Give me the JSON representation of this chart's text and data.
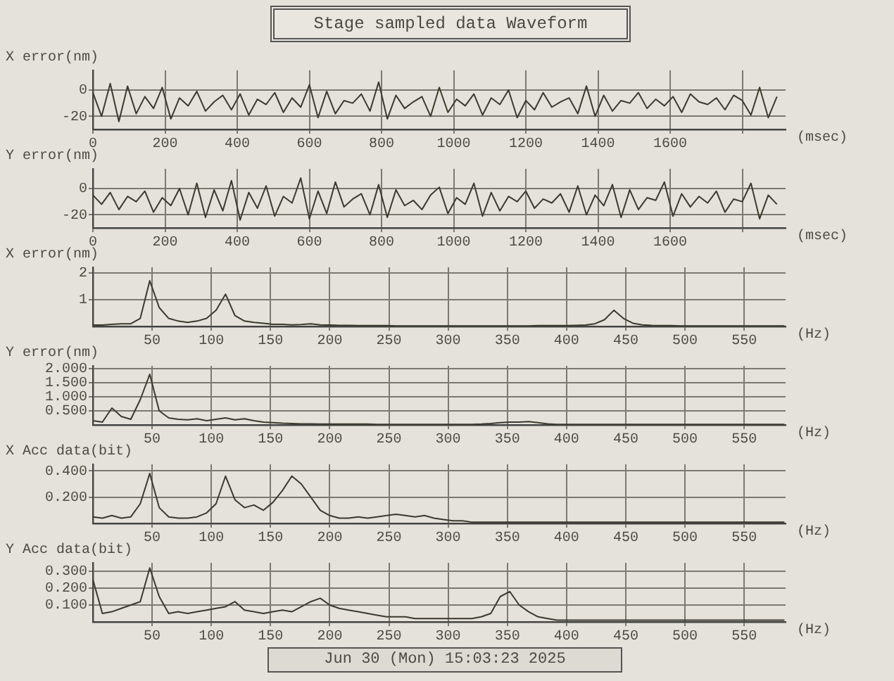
{
  "chart_data": [
    {
      "type": "line",
      "title": "Stage sampled data Waveform",
      "ylabel": "X error(nm)",
      "xlabel": "(msec)",
      "grid": true,
      "marker": "none",
      "line_style": "solid",
      "x": [
        0,
        24,
        48,
        72,
        96,
        120,
        144,
        168,
        192,
        216,
        240,
        264,
        288,
        312,
        336,
        360,
        384,
        408,
        432,
        456,
        480,
        504,
        528,
        552,
        576,
        600,
        624,
        648,
        672,
        696,
        720,
        744,
        768,
        792,
        816,
        840,
        864,
        888,
        912,
        936,
        960,
        984,
        1008,
        1032,
        1056,
        1080,
        1104,
        1128,
        1152,
        1176,
        1200,
        1224,
        1248,
        1272,
        1296,
        1320,
        1344,
        1368,
        1392,
        1416,
        1440,
        1464,
        1488,
        1512,
        1536,
        1560,
        1584,
        1608,
        1632,
        1656,
        1680,
        1704,
        1728,
        1752,
        1776,
        1800,
        1824,
        1848,
        1872,
        1896
      ],
      "xlim": [
        0,
        1920
      ],
      "xticks": [
        0,
        200,
        400,
        600,
        800,
        1000,
        1200,
        1400,
        1600,
        {
          "value": 1800,
          "label": null
        }
      ],
      "ylim": [
        -30,
        15
      ],
      "yticks": [
        0,
        -20
      ],
      "series": [
        {
          "color": "#3a3a2e",
          "values": [
            -2,
            -20,
            5,
            -24,
            3,
            -18,
            -5,
            -14,
            2,
            -22,
            -6,
            -12,
            -1,
            -16,
            -9,
            -4,
            -15,
            -3,
            -19,
            -7,
            -11,
            -2,
            -17,
            -6,
            -13,
            4,
            -21,
            -1,
            -18,
            -8,
            -10,
            -3,
            -16,
            6,
            -22,
            -4,
            -14,
            -9,
            -5,
            -20,
            2,
            -17,
            -7,
            -12,
            -3,
            -19,
            -6,
            -11,
            0,
            -21,
            -8,
            -15,
            -2,
            -13,
            -9,
            -6,
            -18,
            3,
            -20,
            -4,
            -16,
            -8,
            -10,
            -2,
            -14,
            -7,
            -12,
            -5,
            -17,
            -3,
            -9,
            -11,
            -6,
            -15,
            -4,
            -8,
            -19,
            2,
            -21,
            -5
          ]
        }
      ]
    },
    {
      "type": "line",
      "ylabel": "Y error(nm)",
      "xlabel": "(msec)",
      "grid": true,
      "marker": "none",
      "line_style": "solid",
      "x": [
        0,
        24,
        48,
        72,
        96,
        120,
        144,
        168,
        192,
        216,
        240,
        264,
        288,
        312,
        336,
        360,
        384,
        408,
        432,
        456,
        480,
        504,
        528,
        552,
        576,
        600,
        624,
        648,
        672,
        696,
        720,
        744,
        768,
        792,
        816,
        840,
        864,
        888,
        912,
        936,
        960,
        984,
        1008,
        1032,
        1056,
        1080,
        1104,
        1128,
        1152,
        1176,
        1200,
        1224,
        1248,
        1272,
        1296,
        1320,
        1344,
        1368,
        1392,
        1416,
        1440,
        1464,
        1488,
        1512,
        1536,
        1560,
        1584,
        1608,
        1632,
        1656,
        1680,
        1704,
        1728,
        1752,
        1776,
        1800,
        1824,
        1848,
        1872,
        1896
      ],
      "xlim": [
        0,
        1920
      ],
      "xticks": [
        0,
        200,
        400,
        600,
        800,
        1000,
        1200,
        1400,
        1600,
        {
          "value": 1800,
          "label": null
        }
      ],
      "ylim": [
        -30,
        15
      ],
      "yticks": [
        0,
        -20
      ],
      "series": [
        {
          "color": "#3a3a2e",
          "values": [
            -5,
            -12,
            -3,
            -16,
            -6,
            -10,
            -2,
            -18,
            -7,
            -13,
            0,
            -20,
            4,
            -22,
            -1,
            -17,
            6,
            -24,
            -3,
            -15,
            2,
            -21,
            -6,
            -11,
            8,
            -23,
            -2,
            -19,
            5,
            -14,
            -8,
            -4,
            -20,
            3,
            -22,
            -1,
            -13,
            -9,
            -16,
            -5,
            1,
            -19,
            -7,
            -12,
            4,
            -21,
            -3,
            -17,
            -6,
            -10,
            -2,
            -15,
            -8,
            -11,
            -4,
            -18,
            2,
            -20,
            -5,
            -13,
            3,
            -22,
            -1,
            -16,
            -7,
            -9,
            5,
            -21,
            -4,
            -14,
            -6,
            -11,
            -2,
            -18,
            -8,
            -10,
            4,
            -23,
            -5,
            -12
          ]
        }
      ]
    },
    {
      "type": "line",
      "ylabel": "X error(nm)",
      "xlabel": "(Hz)",
      "grid": true,
      "marker": "none",
      "line_style": "solid",
      "x": [
        0,
        8,
        16,
        24,
        32,
        40,
        48,
        56,
        64,
        72,
        80,
        88,
        96,
        104,
        112,
        120,
        128,
        136,
        144,
        152,
        160,
        168,
        176,
        184,
        192,
        200,
        208,
        216,
        224,
        232,
        240,
        248,
        256,
        264,
        272,
        280,
        288,
        296,
        304,
        312,
        320,
        328,
        336,
        344,
        352,
        360,
        368,
        376,
        384,
        392,
        400,
        408,
        416,
        424,
        432,
        440,
        448,
        456,
        464,
        472,
        480,
        488,
        496,
        504,
        512,
        520,
        528,
        536,
        544,
        552,
        560,
        568,
        576,
        584
      ],
      "xlim": [
        0,
        585
      ],
      "xticks": [
        50,
        100,
        150,
        200,
        250,
        300,
        350,
        400,
        450,
        500,
        550
      ],
      "ylim": [
        0,
        2.2
      ],
      "yticks": [
        1,
        2
      ],
      "series": [
        {
          "color": "#3a3a2e",
          "values": [
            0.05,
            0.05,
            0.08,
            0.1,
            0.1,
            0.3,
            1.7,
            0.7,
            0.3,
            0.2,
            0.15,
            0.2,
            0.3,
            0.6,
            1.2,
            0.4,
            0.2,
            0.15,
            0.12,
            0.08,
            0.08,
            0.06,
            0.07,
            0.1,
            0.06,
            0.05,
            0.04,
            0.04,
            0.03,
            0.03,
            0.03,
            0.03,
            0.02,
            0.02,
            0.02,
            0.02,
            0.02,
            0.02,
            0.02,
            0.02,
            0.02,
            0.02,
            0.02,
            0.02,
            0.02,
            0.02,
            0.02,
            0.03,
            0.03,
            0.03,
            0.03,
            0.04,
            0.05,
            0.1,
            0.25,
            0.6,
            0.3,
            0.12,
            0.06,
            0.04,
            0.03,
            0.03,
            0.02,
            0.02,
            0.02,
            0.02,
            0.02,
            0.02,
            0.02,
            0.02,
            0.02,
            0.02,
            0.02,
            0.02
          ]
        }
      ]
    },
    {
      "type": "line",
      "ylabel": "Y error(nm)",
      "xlabel": "(Hz)",
      "grid": true,
      "marker": "none",
      "line_style": "solid",
      "x": [
        0,
        8,
        16,
        24,
        32,
        40,
        48,
        56,
        64,
        72,
        80,
        88,
        96,
        104,
        112,
        120,
        128,
        136,
        144,
        152,
        160,
        168,
        176,
        184,
        192,
        200,
        208,
        216,
        224,
        232,
        240,
        248,
        256,
        264,
        272,
        280,
        288,
        296,
        304,
        312,
        320,
        328,
        336,
        344,
        352,
        360,
        368,
        376,
        384,
        392,
        400,
        408,
        416,
        424,
        432,
        440,
        448,
        456,
        464,
        472,
        480,
        488,
        496,
        504,
        512,
        520,
        528,
        536,
        544,
        552,
        560,
        568,
        576,
        584
      ],
      "xlim": [
        0,
        585
      ],
      "xticks": [
        50,
        100,
        150,
        200,
        250,
        300,
        350,
        400,
        450,
        500,
        550
      ],
      "ylim": [
        0,
        2.1
      ],
      "yticks": [
        {
          "value": 0.5,
          "label": "0.500"
        },
        {
          "value": 1,
          "label": "1.000"
        },
        {
          "value": 1.5,
          "label": "1.500"
        },
        {
          "value": 2,
          "label": "2.000"
        }
      ],
      "series": [
        {
          "color": "#3a3a2e",
          "values": [
            0.15,
            0.1,
            0.6,
            0.3,
            0.2,
            0.9,
            1.8,
            0.5,
            0.25,
            0.2,
            0.18,
            0.22,
            0.15,
            0.2,
            0.25,
            0.18,
            0.22,
            0.15,
            0.1,
            0.08,
            0.06,
            0.05,
            0.04,
            0.04,
            0.03,
            0.03,
            0.03,
            0.03,
            0.03,
            0.03,
            0.02,
            0.02,
            0.02,
            0.02,
            0.02,
            0.02,
            0.02,
            0.02,
            0.02,
            0.02,
            0.02,
            0.03,
            0.05,
            0.08,
            0.1,
            0.1,
            0.12,
            0.08,
            0.04,
            0.02,
            0.02,
            0.02,
            0.02,
            0.02,
            0.02,
            0.02,
            0.02,
            0.02,
            0.02,
            0.02,
            0.02,
            0.02,
            0.02,
            0.02,
            0.02,
            0.02,
            0.02,
            0.02,
            0.02,
            0.02,
            0.02,
            0.02,
            0.02,
            0.02
          ]
        }
      ]
    },
    {
      "type": "line",
      "ylabel": "X Acc data(bit)",
      "xlabel": "(Hz)",
      "grid": true,
      "marker": "none",
      "line_style": "solid",
      "x": [
        0,
        8,
        16,
        24,
        32,
        40,
        48,
        56,
        64,
        72,
        80,
        88,
        96,
        104,
        112,
        120,
        128,
        136,
        144,
        152,
        160,
        168,
        176,
        184,
        192,
        200,
        208,
        216,
        224,
        232,
        240,
        248,
        256,
        264,
        272,
        280,
        288,
        296,
        304,
        312,
        320,
        328,
        336,
        344,
        352,
        360,
        368,
        376,
        384,
        392,
        400,
        408,
        416,
        424,
        432,
        440,
        448,
        456,
        464,
        472,
        480,
        488,
        496,
        504,
        512,
        520,
        528,
        536,
        544,
        552,
        560,
        568,
        576,
        584
      ],
      "xlim": [
        0,
        585
      ],
      "xticks": [
        50,
        100,
        150,
        200,
        250,
        300,
        350,
        400,
        450,
        500,
        550
      ],
      "ylim": [
        0,
        0.45
      ],
      "yticks": [
        {
          "value": 0.2,
          "label": "0.200"
        },
        {
          "value": 0.4,
          "label": "0.400"
        }
      ],
      "series": [
        {
          "color": "#3a3a2e",
          "values": [
            0.05,
            0.04,
            0.06,
            0.04,
            0.05,
            0.15,
            0.38,
            0.12,
            0.05,
            0.04,
            0.04,
            0.05,
            0.08,
            0.15,
            0.36,
            0.18,
            0.12,
            0.14,
            0.1,
            0.16,
            0.25,
            0.36,
            0.3,
            0.2,
            0.1,
            0.06,
            0.04,
            0.04,
            0.05,
            0.04,
            0.05,
            0.06,
            0.07,
            0.06,
            0.05,
            0.06,
            0.04,
            0.03,
            0.02,
            0.02,
            0.01,
            0.01,
            0.01,
            0.01,
            0.01,
            0.01,
            0.01,
            0.01,
            0.01,
            0.01,
            0.01,
            0.01,
            0.01,
            0.01,
            0.01,
            0.01,
            0.01,
            0.01,
            0.01,
            0.01,
            0.01,
            0.01,
            0.01,
            0.01,
            0.01,
            0.01,
            0.01,
            0.01,
            0.01,
            0.01,
            0.01,
            0.01,
            0.01,
            0.01
          ]
        }
      ]
    },
    {
      "type": "line",
      "ylabel": "Y Acc data(bit)",
      "xlabel": "(Hz)",
      "grid": true,
      "marker": "none",
      "line_style": "solid",
      "annotations": [
        "Jun 30 (Mon) 15:03:23 2025"
      ],
      "x": [
        0,
        8,
        16,
        24,
        32,
        40,
        48,
        56,
        64,
        72,
        80,
        88,
        96,
        104,
        112,
        120,
        128,
        136,
        144,
        152,
        160,
        168,
        176,
        184,
        192,
        200,
        208,
        216,
        224,
        232,
        240,
        248,
        256,
        264,
        272,
        280,
        288,
        296,
        304,
        312,
        320,
        328,
        336,
        344,
        352,
        360,
        368,
        376,
        384,
        392,
        400,
        408,
        416,
        424,
        432,
        440,
        448,
        456,
        464,
        472,
        480,
        488,
        496,
        504,
        512,
        520,
        528,
        536,
        544,
        552,
        560,
        568,
        576,
        584
      ],
      "xlim": [
        0,
        585
      ],
      "xticks": [
        50,
        100,
        150,
        200,
        250,
        300,
        350,
        400,
        450,
        500,
        550
      ],
      "ylim": [
        0,
        0.35
      ],
      "yticks": [
        {
          "value": 0.1,
          "label": "0.100"
        },
        {
          "value": 0.2,
          "label": "0.200"
        },
        {
          "value": 0.3,
          "label": "0.300"
        }
      ],
      "series": [
        {
          "color": "#3a3a2e",
          "values": [
            0.25,
            0.05,
            0.06,
            0.08,
            0.1,
            0.12,
            0.32,
            0.15,
            0.05,
            0.06,
            0.05,
            0.06,
            0.07,
            0.08,
            0.09,
            0.12,
            0.07,
            0.06,
            0.05,
            0.06,
            0.07,
            0.06,
            0.09,
            0.12,
            0.14,
            0.1,
            0.08,
            0.07,
            0.06,
            0.05,
            0.04,
            0.03,
            0.03,
            0.03,
            0.02,
            0.02,
            0.02,
            0.02,
            0.02,
            0.02,
            0.02,
            0.03,
            0.05,
            0.15,
            0.18,
            0.1,
            0.06,
            0.03,
            0.02,
            0.01,
            0.01,
            0.01,
            0.01,
            0.01,
            0.01,
            0.01,
            0.01,
            0.01,
            0.01,
            0.01,
            0.01,
            0.01,
            0.01,
            0.01,
            0.01,
            0.01,
            0.01,
            0.01,
            0.01,
            0.01,
            0.01,
            0.01,
            0.01,
            0.01
          ]
        }
      ]
    }
  ]
}
